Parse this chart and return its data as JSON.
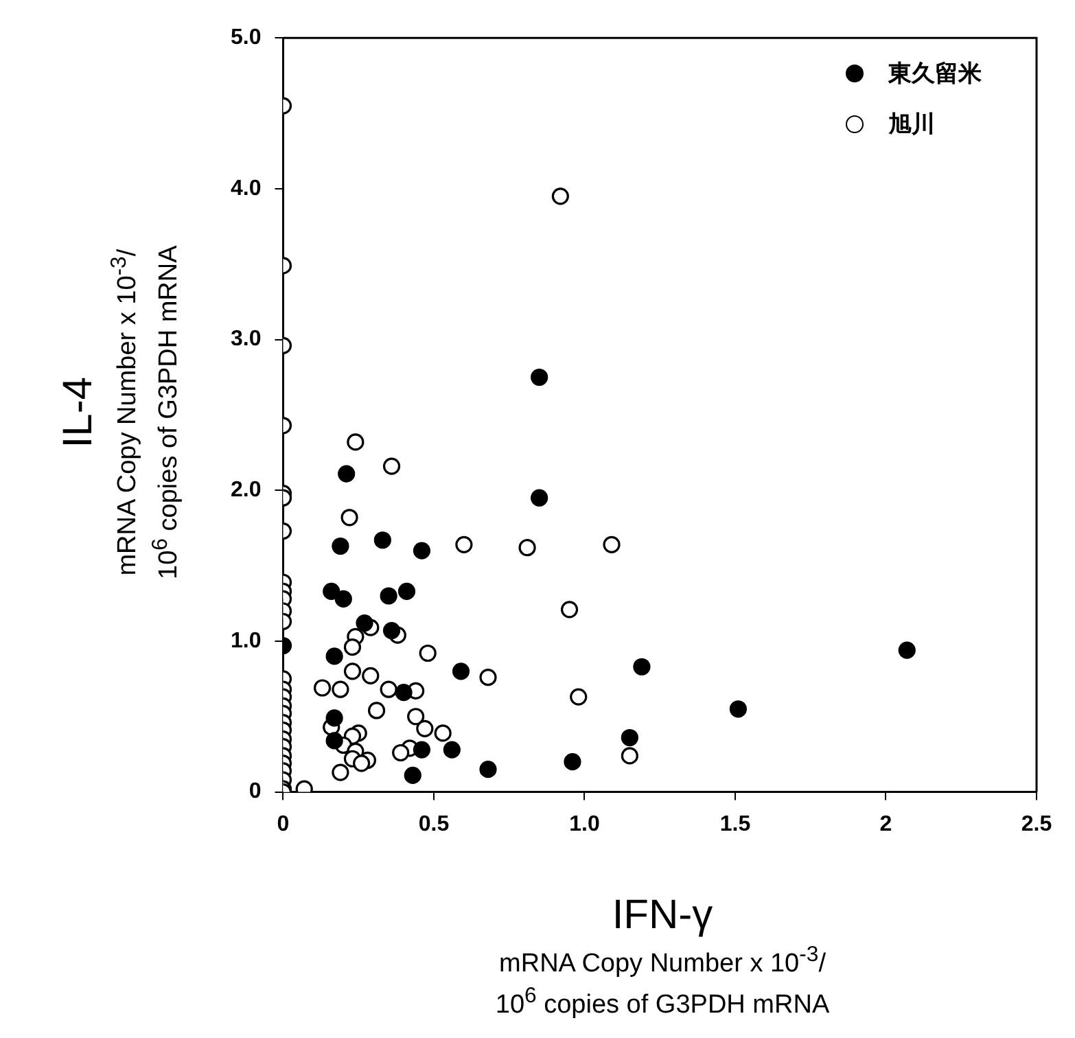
{
  "chart_data": {
    "type": "scatter",
    "xlabel": "IFN-γ\nmRNA Copy Number x 10$^{-3}$/\n10$^{6}$ copies of G3PDH mRNA",
    "ylabel": "IL-4\nmRNA Copy Number x 10$^{-3}$/\n10$^{6}$ copies of G3PDH mRNA",
    "xlim": [
      0,
      2.5
    ],
    "xticks": [
      0,
      0.5,
      {
        "value": 1,
        "label": "1.0"
      },
      1.5,
      2,
      2.5
    ],
    "ylim": [
      0,
      5
    ],
    "yticks": [
      0,
      {
        "value": 1,
        "label": "1.0"
      },
      {
        "value": 2,
        "label": "2.0"
      },
      {
        "value": 3,
        "label": "3.0"
      },
      {
        "value": 4,
        "label": "4.0"
      },
      {
        "value": 5,
        "label": "5.0"
      }
    ],
    "grid": false,
    "legend": "top right",
    "marker": "circle",
    "series": [
      {
        "name": "東久留米",
        "color": "#000000",
        "x": [
          0.85,
          0.21,
          0.85,
          0.19,
          0.33,
          0.46,
          0.16,
          0.2,
          0.35,
          0.41,
          0.27,
          0.36,
          0,
          0.17,
          0.59,
          1.19,
          0.4,
          0.17,
          0.17,
          1.15,
          0.46,
          0.56,
          0.96,
          0.68,
          0.43,
          2.07,
          1.51
        ],
        "values": [
          2.75,
          2.11,
          1.95,
          1.63,
          1.67,
          1.6,
          1.33,
          1.28,
          1.3,
          1.33,
          1.12,
          1.07,
          0.97,
          0.9,
          0.8,
          0.83,
          0.66,
          0.49,
          0.34,
          0.36,
          0.28,
          0.28,
          0.2,
          0.15,
          0.11,
          0.94,
          0.55
        ]
      },
      {
        "name": "旭川",
        "color": "#ffffff",
        "x": [
          0,
          0.92,
          0,
          0,
          0,
          0.24,
          0.36,
          0,
          0,
          0.22,
          0,
          0.6,
          0.81,
          1.09,
          0,
          0,
          0,
          0,
          0,
          0.95,
          0.29,
          0.38,
          0.24,
          0.23,
          0.48,
          0.23,
          0.29,
          0.68,
          0.13,
          0.19,
          0.35,
          0.44,
          0.98,
          0.31,
          0.44,
          0.16,
          0.47,
          0.53,
          0.25,
          0.23,
          0.2,
          0.42,
          0.39,
          0.24,
          1.15,
          0.23,
          0.28,
          0.26,
          0.19,
          0.07,
          0,
          0,
          0,
          0,
          0,
          0,
          0,
          0,
          0,
          0,
          0,
          0,
          0,
          0,
          0
        ],
        "values": [
          4.55,
          3.95,
          3.49,
          2.96,
          2.43,
          2.32,
          2.16,
          1.98,
          1.95,
          1.82,
          1.73,
          1.64,
          1.62,
          1.64,
          1.39,
          1.33,
          1.28,
          1.2,
          1.13,
          1.21,
          1.09,
          1.04,
          1.03,
          0.96,
          0.92,
          0.8,
          0.77,
          0.76,
          0.69,
          0.68,
          0.68,
          0.67,
          0.63,
          0.54,
          0.5,
          0.43,
          0.42,
          0.39,
          0.39,
          0.37,
          0.31,
          0.29,
          0.26,
          0.27,
          0.24,
          0.22,
          0.21,
          0.19,
          0.13,
          0.02,
          0.75,
          0.68,
          0.63,
          0.57,
          0.52,
          0.46,
          0.41,
          0.35,
          0.3,
          0.24,
          0.19,
          0.14,
          0.08,
          0.02,
          0
        ]
      }
    ]
  }
}
